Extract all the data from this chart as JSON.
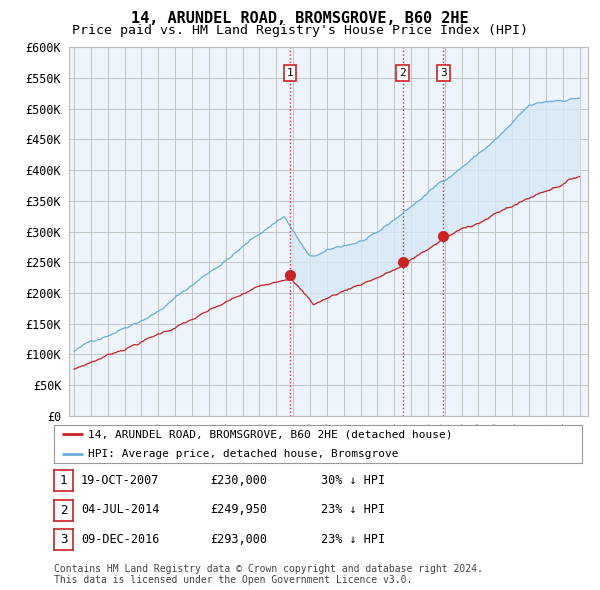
{
  "title": "14, ARUNDEL ROAD, BROMSGROVE, B60 2HE",
  "subtitle": "Price paid vs. HM Land Registry's House Price Index (HPI)",
  "ylabel_ticks": [
    "£0",
    "£50K",
    "£100K",
    "£150K",
    "£200K",
    "£250K",
    "£300K",
    "£350K",
    "£400K",
    "£450K",
    "£500K",
    "£550K",
    "£600K"
  ],
  "ylim": [
    0,
    600000
  ],
  "ytick_vals": [
    0,
    50000,
    100000,
    150000,
    200000,
    250000,
    300000,
    350000,
    400000,
    450000,
    500000,
    550000,
    600000
  ],
  "hpi_color": "#6baed6",
  "hpi_fill_color": "#d6e8f5",
  "price_color": "#cc2222",
  "vline_color": "#cc2222",
  "sale_dates_year": [
    2007.82,
    2014.5,
    2016.92
  ],
  "sale_prices": [
    230000,
    249950,
    293000
  ],
  "sale_labels": [
    "1",
    "2",
    "3"
  ],
  "legend_entries": [
    "14, ARUNDEL ROAD, BROMSGROVE, B60 2HE (detached house)",
    "HPI: Average price, detached house, Bromsgrove"
  ],
  "table_rows": [
    [
      "1",
      "19-OCT-2007",
      "£230,000",
      "30% ↓ HPI"
    ],
    [
      "2",
      "04-JUL-2014",
      "£249,950",
      "23% ↓ HPI"
    ],
    [
      "3",
      "09-DEC-2016",
      "£293,000",
      "23% ↓ HPI"
    ]
  ],
  "footnote": "Contains HM Land Registry data © Crown copyright and database right 2024.\nThis data is licensed under the Open Government Licence v3.0.",
  "bg_color": "#ffffff",
  "chart_bg_color": "#eef4fb",
  "grid_color": "#bbbbbb",
  "title_fontsize": 11,
  "subtitle_fontsize": 9.5,
  "tick_fontsize": 8.5
}
